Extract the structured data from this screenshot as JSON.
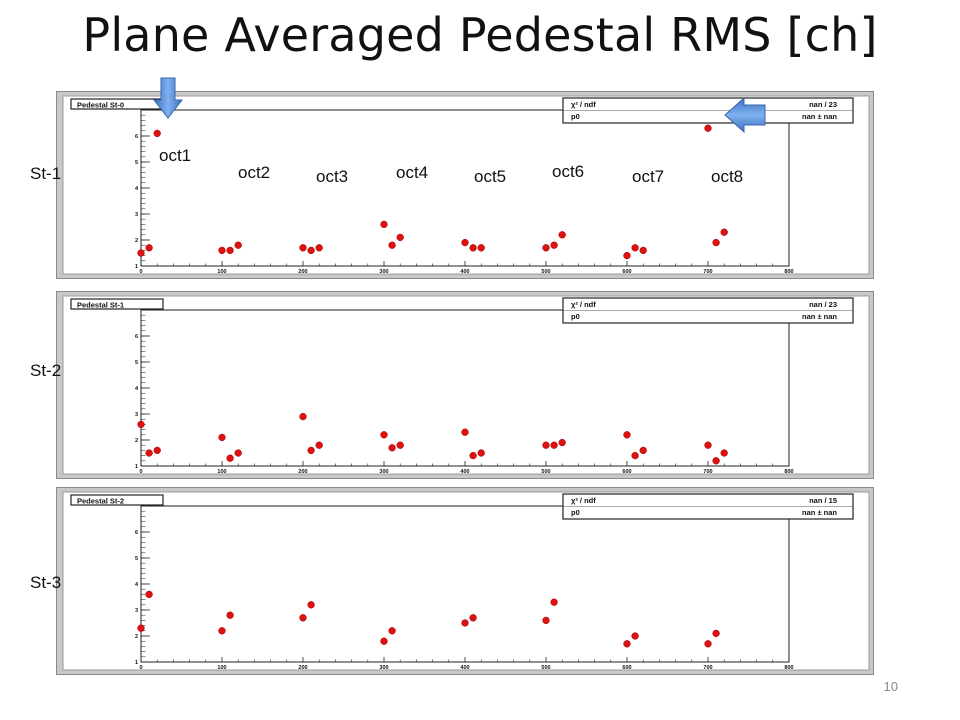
{
  "title": "Plane Averaged Pedestal RMS [ch]",
  "page_number": "10",
  "row_labels": [
    "St-1",
    "St-2",
    "St-3"
  ],
  "octant_labels": [
    "oct1",
    "oct2",
    "oct3",
    "oct4",
    "oct5",
    "oct6",
    "oct7",
    "oct8"
  ],
  "colors": {
    "marker": "#dd1111",
    "plot_bg": "#ffffff",
    "frame_bg": "#c8c8c8",
    "arrow": "#4a86d8"
  },
  "chart_data": [
    {
      "type": "scatter",
      "title": "Pedestal St-0",
      "stats": {
        "row1_label": "χ² / ndf",
        "row1_value": "nan / 23",
        "row2_label": "p0",
        "row2_value": "nan ±  nan"
      },
      "xlim": [
        0,
        800
      ],
      "ylim": [
        1,
        7
      ],
      "xticks": [
        0,
        100,
        200,
        300,
        400,
        500,
        600,
        700,
        800
      ],
      "yticks": [
        1,
        2,
        3,
        4,
        5,
        6
      ],
      "points": [
        [
          0,
          1.5
        ],
        [
          10,
          1.7
        ],
        [
          20,
          6.1
        ],
        [
          100,
          1.6
        ],
        [
          110,
          1.6
        ],
        [
          120,
          1.8
        ],
        [
          200,
          1.7
        ],
        [
          210,
          1.6
        ],
        [
          220,
          1.7
        ],
        [
          300,
          2.6
        ],
        [
          310,
          1.8
        ],
        [
          320,
          2.1
        ],
        [
          400,
          1.9
        ],
        [
          410,
          1.7
        ],
        [
          420,
          1.7
        ],
        [
          500,
          1.7
        ],
        [
          510,
          1.8
        ],
        [
          520,
          2.2
        ],
        [
          600,
          1.4
        ],
        [
          610,
          1.7
        ],
        [
          620,
          1.6
        ],
        [
          700,
          6.3
        ],
        [
          710,
          1.9
        ],
        [
          720,
          2.3
        ]
      ]
    },
    {
      "type": "scatter",
      "title": "Pedestal St-1",
      "stats": {
        "row1_label": "χ² / ndf",
        "row1_value": "nan / 23",
        "row2_label": "p0",
        "row2_value": "nan ±  nan"
      },
      "xlim": [
        0,
        800
      ],
      "ylim": [
        1,
        7
      ],
      "xticks": [
        0,
        100,
        200,
        300,
        400,
        500,
        600,
        700,
        800
      ],
      "yticks": [
        1,
        2,
        3,
        4,
        5,
        6
      ],
      "points": [
        [
          0,
          2.6
        ],
        [
          10,
          1.5
        ],
        [
          20,
          1.6
        ],
        [
          100,
          2.1
        ],
        [
          110,
          1.3
        ],
        [
          120,
          1.5
        ],
        [
          200,
          2.9
        ],
        [
          210,
          1.6
        ],
        [
          220,
          1.8
        ],
        [
          300,
          2.2
        ],
        [
          310,
          1.7
        ],
        [
          320,
          1.8
        ],
        [
          400,
          2.3
        ],
        [
          410,
          1.4
        ],
        [
          420,
          1.5
        ],
        [
          500,
          1.8
        ],
        [
          510,
          1.8
        ],
        [
          520,
          1.9
        ],
        [
          600,
          2.2
        ],
        [
          610,
          1.4
        ],
        [
          620,
          1.6
        ],
        [
          700,
          1.8
        ],
        [
          710,
          1.2
        ],
        [
          720,
          1.5
        ]
      ]
    },
    {
      "type": "scatter",
      "title": "Pedestal St-2",
      "stats": {
        "row1_label": "χ² / ndf",
        "row1_value": "nan / 15",
        "row2_label": "p0",
        "row2_value": "nan ±  nan"
      },
      "xlim": [
        0,
        800
      ],
      "ylim": [
        1,
        7
      ],
      "xticks": [
        0,
        100,
        200,
        300,
        400,
        500,
        600,
        700,
        800
      ],
      "yticks": [
        1,
        2,
        3,
        4,
        5,
        6
      ],
      "points": [
        [
          0,
          2.3
        ],
        [
          10,
          3.6
        ],
        [
          100,
          2.2
        ],
        [
          110,
          2.8
        ],
        [
          200,
          2.7
        ],
        [
          210,
          3.2
        ],
        [
          300,
          1.8
        ],
        [
          310,
          2.2
        ],
        [
          400,
          2.5
        ],
        [
          410,
          2.7
        ],
        [
          500,
          2.6
        ],
        [
          510,
          3.3
        ],
        [
          600,
          1.7
        ],
        [
          610,
          2.0
        ],
        [
          700,
          1.7
        ],
        [
          710,
          2.1
        ]
      ]
    }
  ]
}
